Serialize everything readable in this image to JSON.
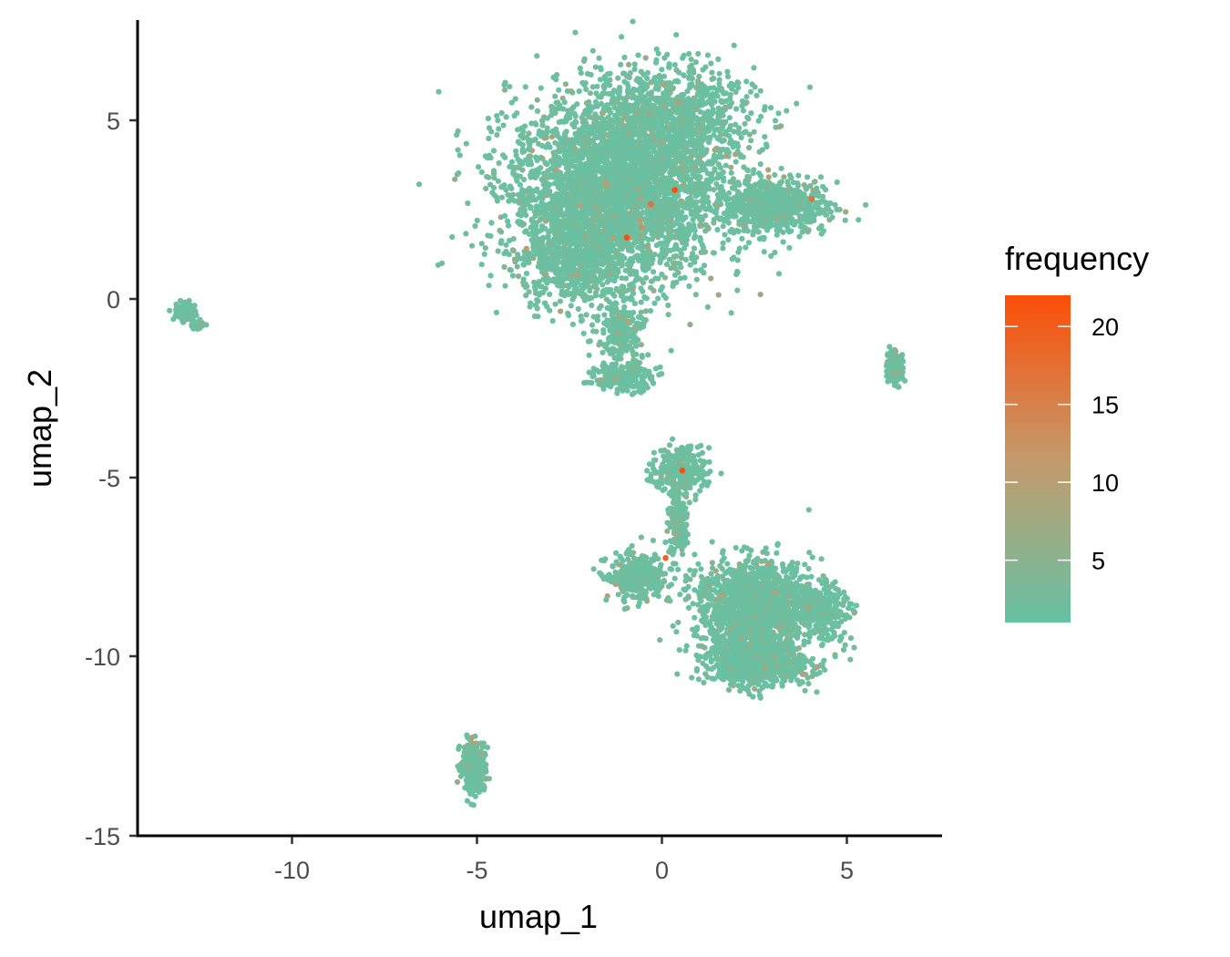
{
  "chart_data": {
    "type": "scatter",
    "xlabel": "umap_1",
    "ylabel": "umap_2",
    "xlim": [
      -14.3,
      7.5
    ],
    "ylim": [
      -15,
      7.8
    ],
    "x_ticks": [
      -10,
      -5,
      0,
      5
    ],
    "y_ticks": [
      5,
      0,
      -5,
      -10,
      -15
    ],
    "x_tick_labels": [
      "-10",
      "-5",
      "0",
      "5"
    ],
    "y_tick_labels": [
      "5",
      "0",
      "-5",
      "-10",
      "-15"
    ],
    "grid": false,
    "color_scale": {
      "title": "frequency",
      "min": 1,
      "max": 22,
      "low_color": "#66c2a5",
      "mid_color": "#c49a6c",
      "high_color": "#fc4e08",
      "breaks": [
        5,
        10,
        15,
        20
      ],
      "break_labels": [
        "5",
        "10",
        "15",
        "20"
      ]
    },
    "legend_position": "right",
    "clusters": [
      {
        "cx": -1.3,
        "cy": 3.0,
        "sx": 2.0,
        "sy": 1.9,
        "n": 3600
      },
      {
        "cx": 0.3,
        "cy": 5.0,
        "sx": 1.6,
        "sy": 1.1,
        "n": 900
      },
      {
        "cx": 3.0,
        "cy": 2.6,
        "sx": 1.0,
        "sy": 0.55,
        "n": 700
      },
      {
        "cx": -2.5,
        "cy": 1.0,
        "sx": 0.9,
        "sy": 0.9,
        "n": 400
      },
      {
        "cx": -1.1,
        "cy": -1.0,
        "sx": 0.45,
        "sy": 0.7,
        "n": 220
      },
      {
        "cx": -1.0,
        "cy": -2.2,
        "sx": 0.55,
        "sy": 0.3,
        "n": 220
      },
      {
        "cx": 0.5,
        "cy": -4.8,
        "sx": 0.55,
        "sy": 0.45,
        "n": 260
      },
      {
        "cx": 0.45,
        "cy": -6.2,
        "sx": 0.2,
        "sy": 0.8,
        "n": 180
      },
      {
        "cx": -0.7,
        "cy": -7.8,
        "sx": 0.55,
        "sy": 0.45,
        "n": 320
      },
      {
        "cx": 2.5,
        "cy": -8.6,
        "sx": 1.1,
        "sy": 0.9,
        "n": 1500
      },
      {
        "cx": 2.6,
        "cy": -10.2,
        "sx": 1.0,
        "sy": 0.45,
        "n": 800
      },
      {
        "cx": 4.3,
        "cy": -8.7,
        "sx": 0.5,
        "sy": 0.5,
        "n": 300
      },
      {
        "cx": 6.3,
        "cy": -1.9,
        "sx": 0.18,
        "sy": 0.35,
        "n": 130
      },
      {
        "cx": -12.9,
        "cy": -0.35,
        "sx": 0.2,
        "sy": 0.18,
        "n": 120
      },
      {
        "cx": -12.55,
        "cy": -0.75,
        "sx": 0.15,
        "sy": 0.1,
        "n": 40
      },
      {
        "cx": -5.1,
        "cy": -13.1,
        "sx": 0.22,
        "sy": 0.45,
        "n": 380
      }
    ],
    "highlight_points": [
      {
        "x": 0.35,
        "y": 3.05,
        "frequency": 22
      },
      {
        "x": -0.95,
        "y": 1.72,
        "frequency": 22
      },
      {
        "x": -0.3,
        "y": 2.65,
        "frequency": 17
      },
      {
        "x": 4.05,
        "y": 2.8,
        "frequency": 17
      },
      {
        "x": -0.55,
        "y": 2.0,
        "frequency": 13
      },
      {
        "x": -0.6,
        "y": 2.2,
        "frequency": 11
      },
      {
        "x": -1.5,
        "y": 3.2,
        "frequency": 11
      },
      {
        "x": 0.55,
        "y": -4.8,
        "frequency": 22
      },
      {
        "x": 0.1,
        "y": -7.25,
        "frequency": 19
      },
      {
        "x": 3.8,
        "y": -10.5,
        "frequency": 9
      },
      {
        "x": 2.8,
        "y": -10.3,
        "frequency": 8
      },
      {
        "x": 4.2,
        "y": -10.3,
        "frequency": 8
      },
      {
        "x": 3.2,
        "y": -9.2,
        "frequency": 7
      },
      {
        "x": -2.2,
        "y": 2.6,
        "frequency": 8
      },
      {
        "x": -1.6,
        "y": 5.2,
        "frequency": 7
      },
      {
        "x": 0.05,
        "y": 6.0,
        "frequency": 8
      }
    ]
  }
}
